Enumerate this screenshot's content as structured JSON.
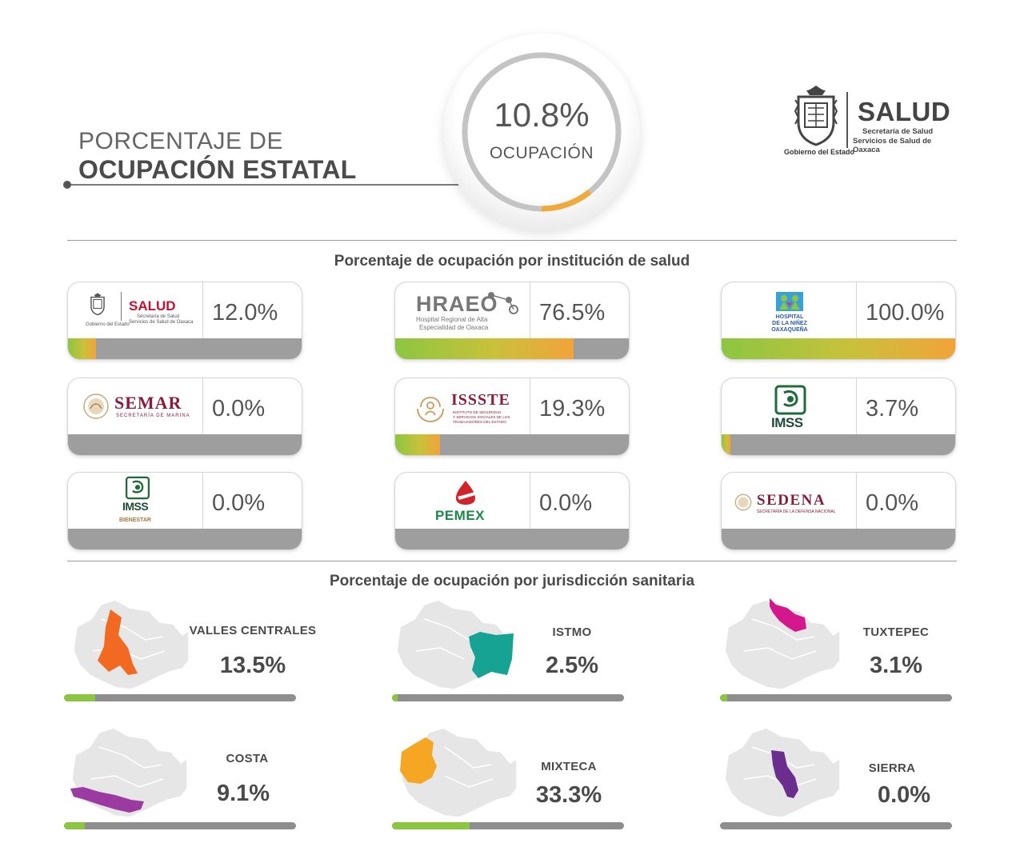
{
  "header": {
    "title_line1": "PORCENTAJE DE",
    "title_line2": "OCUPACIÓN ESTATAL",
    "overall_value": "10.8%",
    "overall_fraction": 0.108,
    "overall_label": "OCUPACIÓN"
  },
  "brand": {
    "salud": "SALUD",
    "sub1": "Secretaría de Salud",
    "sub2": "Servicios de Salud de Oaxaca",
    "gobierno": "Gobierno del Estado"
  },
  "sections": {
    "institutions_title": "Porcentaje de ocupación por institución de salud",
    "jurisdictions_title": "Porcentaje de ocupación por jurisdicción sanitaria"
  },
  "institutions": [
    {
      "name": "SALUD",
      "sub1": "Secretaría de Salud",
      "sub2": "Servicios de Salud de Oaxaca",
      "gob": "Gobierno del Estado",
      "value": "12.0%",
      "pct": 12.0
    },
    {
      "name": "HRAEO",
      "sub1": "Hospital Regional de Alta",
      "sub2": "Especialidad de Oaxaca",
      "value": "76.5%",
      "pct": 76.5
    },
    {
      "name": "HOSPITAL DE LA NIÑEZ OAXAQUEÑA",
      "sub1": "HOSPITAL",
      "sub2": "DE LA NIÑEZ",
      "sub3": "OAXAQUEÑA",
      "value": "100.0%",
      "pct": 100.0
    },
    {
      "name": "SEMAR",
      "sub1": "SECRETARÍA DE MARINA",
      "value": "0.0%",
      "pct": 0.0
    },
    {
      "name": "ISSSTE",
      "sub1": "INSTITUTO DE SEGURIDAD",
      "sub2": "Y SERVICIOS SOCIALES DE LOS",
      "sub3": "TRABAJADORES DEL ESTADO",
      "value": "19.3%",
      "pct": 19.3
    },
    {
      "name": "IMSS",
      "value": "3.7%",
      "pct": 3.7
    },
    {
      "name": "IMSS",
      "sub1": "BIENESTAR",
      "value": "0.0%",
      "pct": 0.0
    },
    {
      "name": "PEMEX",
      "value": "0.0%",
      "pct": 0.0
    },
    {
      "name": "SEDENA",
      "sub1": "SECRETARÍA DE LA DEFENSA NACIONAL",
      "value": "0.0%",
      "pct": 0.0
    }
  ],
  "jurisdictions": [
    {
      "name": "VALLES CENTRALES",
      "value": "13.5%",
      "pct": 13.5,
      "color": "#f26a21"
    },
    {
      "name": "ISTMO",
      "value": "2.5%",
      "pct": 2.5,
      "color": "#16a394"
    },
    {
      "name": "TUXTEPEC",
      "value": "3.1%",
      "pct": 3.1,
      "color": "#d4178c"
    },
    {
      "name": "COSTA",
      "value": "9.1%",
      "pct": 9.1,
      "color": "#9b3aa0"
    },
    {
      "name": "MIXTECA",
      "value": "33.3%",
      "pct": 33.3,
      "color": "#f5a623"
    },
    {
      "name": "SIERRA",
      "value": "0.0%",
      "pct": 0.0,
      "color": "#6b2e8f"
    }
  ],
  "colors": {
    "bar_green": "#8cc641",
    "bar_orange": "#f2a33a",
    "bar_gray": "#9e9e9e",
    "map_gray": "#e6e6e6"
  }
}
